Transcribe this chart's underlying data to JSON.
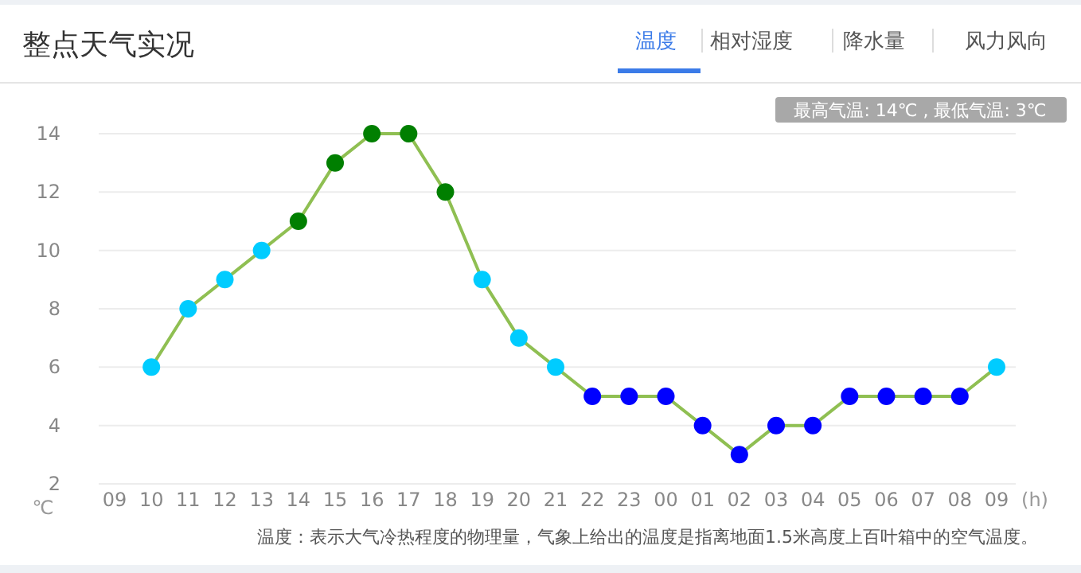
{
  "chart_data": {
    "type": "line",
    "title": "整点天气实况",
    "xlabel": "(h)",
    "ylabel": "℃",
    "annotations": [
      "温度",
      "相对湿度",
      "降水量",
      "风力风向",
      "最高气温: 14℃ , 最低气温: 3℃",
      "温度：表示大气冷热程度的物理量，气象上给出的温度是指离地面1.5米高度上百叶箱中的空气温度。"
    ],
    "categories": [
      "09",
      "10",
      "11",
      "12",
      "13",
      "14",
      "15",
      "16",
      "17",
      "18",
      "19",
      "20",
      "21",
      "22",
      "23",
      "00",
      "01",
      "02",
      "03",
      "04",
      "05",
      "06",
      "07",
      "08",
      "09"
    ],
    "series": [
      {
        "color": "#8fbf52",
        "values": [
          null,
          6,
          8,
          9,
          10,
          11,
          13,
          14,
          14,
          12,
          9,
          7,
          6,
          5,
          5,
          5,
          4,
          3,
          4,
          4,
          5,
          5,
          5,
          5,
          6
        ],
        "colors": [
          null,
          "#00ccff",
          "#00ccff",
          "#00ccff",
          "#00ccff",
          "#007f00",
          "#007f00",
          "#007f00",
          "#007f00",
          "#007f00",
          "#00ccff",
          "#00ccff",
          "#00ccff",
          "#0000ff",
          "#0000ff",
          "#0000ff",
          "#0000ff",
          "#0000ff",
          "#0000ff",
          "#0000ff",
          "#0000ff",
          "#0000ff",
          "#0000ff",
          "#0000ff",
          "#00ccff"
        ]
      }
    ],
    "ylim": [
      2,
      14
    ],
    "yticks": [
      2,
      4,
      6,
      8,
      10,
      12,
      14
    ],
    "grid": "y",
    "marker": "circle",
    "line_style": "solid"
  }
}
